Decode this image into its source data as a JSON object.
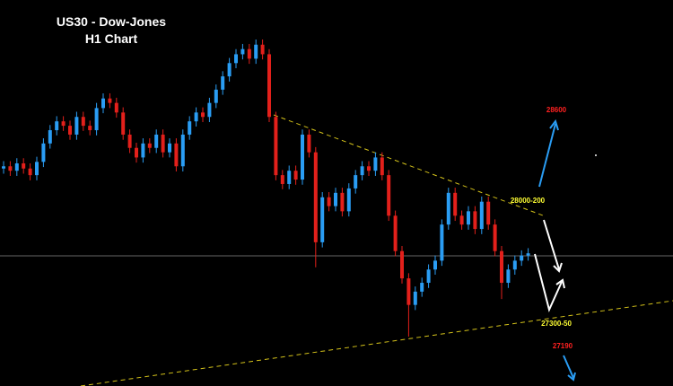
{
  "chart_data": {
    "type": "candlestick",
    "title": "US30 - Dow-Jones",
    "subtitle": "H1 Chart",
    "ylim": [
      26825,
      29443
    ],
    "up_color": "#2a9df4",
    "down_color": "#e3201b",
    "annotations": [
      "28600",
      "28000-200",
      "27300-50",
      "27190"
    ],
    "open": [
      28300,
      28315,
      28285,
      28335,
      28300,
      28255,
      28345,
      28470,
      28560,
      28620,
      28590,
      28530,
      28650,
      28590,
      28560,
      28710,
      28775,
      28745,
      28680,
      28530,
      28440,
      28375,
      28470,
      28440,
      28530,
      28410,
      28470,
      28315,
      28530,
      28620,
      28680,
      28650,
      28745,
      28835,
      28925,
      29015,
      29075,
      29110,
      29045,
      29140,
      29075,
      28650,
      28255,
      28195,
      28285,
      28225,
      28530,
      28410,
      27800,
      28105,
      28045,
      28135,
      28010,
      28165,
      28255,
      28315,
      28285,
      28375,
      28255,
      27980,
      27740,
      27555,
      27375,
      27465,
      27525,
      27615,
      27675,
      27920,
      28135,
      27980,
      27920,
      28010,
      27890,
      28075,
      27920,
      27740,
      27525,
      27615,
      27675,
      27710
    ],
    "high": [
      28350,
      28350,
      28370,
      28370,
      28335,
      28380,
      28505,
      28595,
      28655,
      28655,
      28625,
      28685,
      28685,
      28625,
      28745,
      28810,
      28810,
      28780,
      28715,
      28565,
      28475,
      28505,
      28505,
      28565,
      28565,
      28505,
      28505,
      28565,
      28655,
      28715,
      28715,
      28780,
      28870,
      28960,
      29050,
      29110,
      29145,
      29145,
      29175,
      29175,
      29110,
      28685,
      28290,
      28320,
      28320,
      28565,
      28565,
      28445,
      28140,
      28140,
      28170,
      28170,
      28200,
      28290,
      28350,
      28350,
      28410,
      28410,
      28290,
      28015,
      27775,
      27590,
      27500,
      27560,
      27650,
      27710,
      27955,
      28170,
      28170,
      28015,
      28045,
      28045,
      28110,
      28110,
      27955,
      27775,
      27650,
      27710,
      27745,
      27760
    ],
    "low": [
      28265,
      28250,
      28250,
      28265,
      28220,
      28220,
      28310,
      28435,
      28525,
      28555,
      28495,
      28495,
      28555,
      28525,
      28525,
      28675,
      28710,
      28645,
      28495,
      28405,
      28340,
      28340,
      28405,
      28405,
      28375,
      28375,
      28280,
      28280,
      28495,
      28585,
      28615,
      28615,
      28710,
      28800,
      28890,
      28980,
      29040,
      29010,
      29010,
      29040,
      28615,
      28220,
      28160,
      28160,
      28190,
      28190,
      28375,
      27630,
      27765,
      28010,
      28010,
      27975,
      27975,
      28130,
      28220,
      28250,
      28250,
      28220,
      27945,
      27705,
      27520,
      27160,
      27340,
      27430,
      27490,
      27580,
      27640,
      27885,
      27945,
      27885,
      27885,
      27855,
      27855,
      27885,
      27705,
      27415,
      27490,
      27580,
      27640,
      27675
    ],
    "close": [
      28315,
      28285,
      28335,
      28300,
      28255,
      28345,
      28470,
      28560,
      28620,
      28590,
      28530,
      28650,
      28590,
      28560,
      28710,
      28775,
      28745,
      28680,
      28530,
      28440,
      28375,
      28470,
      28440,
      28530,
      28410,
      28470,
      28315,
      28530,
      28620,
      28680,
      28650,
      28745,
      28835,
      28925,
      29015,
      29075,
      29110,
      29045,
      29140,
      29075,
      28650,
      28255,
      28195,
      28285,
      28225,
      28530,
      28410,
      27800,
      28105,
      28045,
      28135,
      28010,
      28165,
      28255,
      28315,
      28285,
      28375,
      28255,
      27980,
      27740,
      27555,
      27375,
      27465,
      27525,
      27615,
      27675,
      27920,
      28135,
      27980,
      27920,
      28010,
      27890,
      28075,
      27920,
      27740,
      27525,
      27615,
      27675,
      27710,
      27725
    ]
  }
}
